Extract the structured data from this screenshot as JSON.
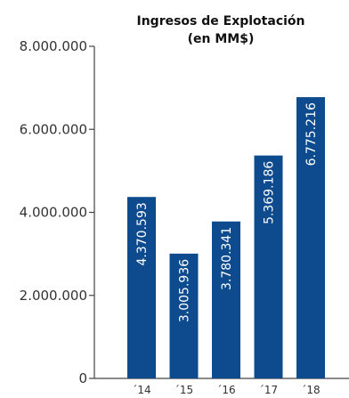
{
  "chart_data": {
    "type": "bar",
    "title_lines": [
      "Ingresos de Explotación",
      "(en MM$)"
    ],
    "categories": [
      "´14",
      "´15",
      "´16",
      "´17",
      "´18"
    ],
    "values": [
      4370593,
      3005936,
      3780341,
      5369186,
      6775216
    ],
    "value_labels": [
      "4.370.593",
      "3.005.936",
      "3.780.341",
      "5.369.186",
      "6.775.216"
    ],
    "y_ticks": [
      0,
      2000000,
      4000000,
      6000000,
      8000000
    ],
    "y_tick_labels": [
      "0",
      "2.000.000",
      "4.000.000",
      "6.000.000",
      "8.000.000"
    ],
    "ylim": [
      0,
      8000000
    ],
    "xlabel": "",
    "ylabel": "",
    "grid": false,
    "bar_color": "#0d4a8e",
    "axis_color": "#444444"
  }
}
